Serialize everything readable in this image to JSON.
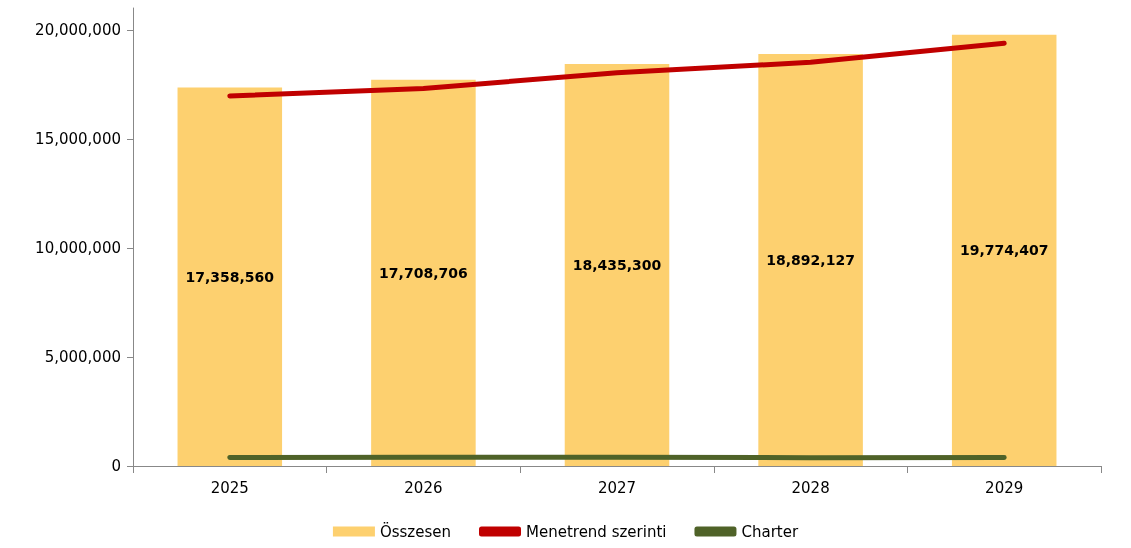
{
  "chart_data": {
    "type": "bar",
    "categories": [
      "2025",
      "2026",
      "2027",
      "2028",
      "2029"
    ],
    "series": [
      {
        "name": "Összesen",
        "color": "#fdd06f",
        "values": [
          17358560,
          17708706,
          18435300,
          18892127,
          19774407
        ],
        "value_labels": [
          "17,358,560",
          "17,708,706",
          "18,435,300",
          "18,892,127",
          "19,774,407"
        ]
      },
      {
        "name": "Menetrend szerinti",
        "type": "line",
        "color": "#c00000",
        "values": [
          16970000,
          17310000,
          18030000,
          18510000,
          19380000
        ]
      },
      {
        "name": "Charter",
        "type": "line",
        "color": "#4f6228",
        "values": [
          390000,
          400000,
          400000,
          380000,
          390000
        ]
      }
    ],
    "ylim": [
      0,
      21000000
    ],
    "yticks": [
      0,
      {
        "value": 5000000,
        "label": "5,000,000"
      },
      {
        "value": 10000000,
        "label": "10,000,000"
      },
      {
        "value": 15000000,
        "label": "15,000,000"
      },
      {
        "value": 20000000,
        "label": "20,000,000"
      }
    ],
    "grid": false,
    "legend": "bottom",
    "marker": "none"
  }
}
